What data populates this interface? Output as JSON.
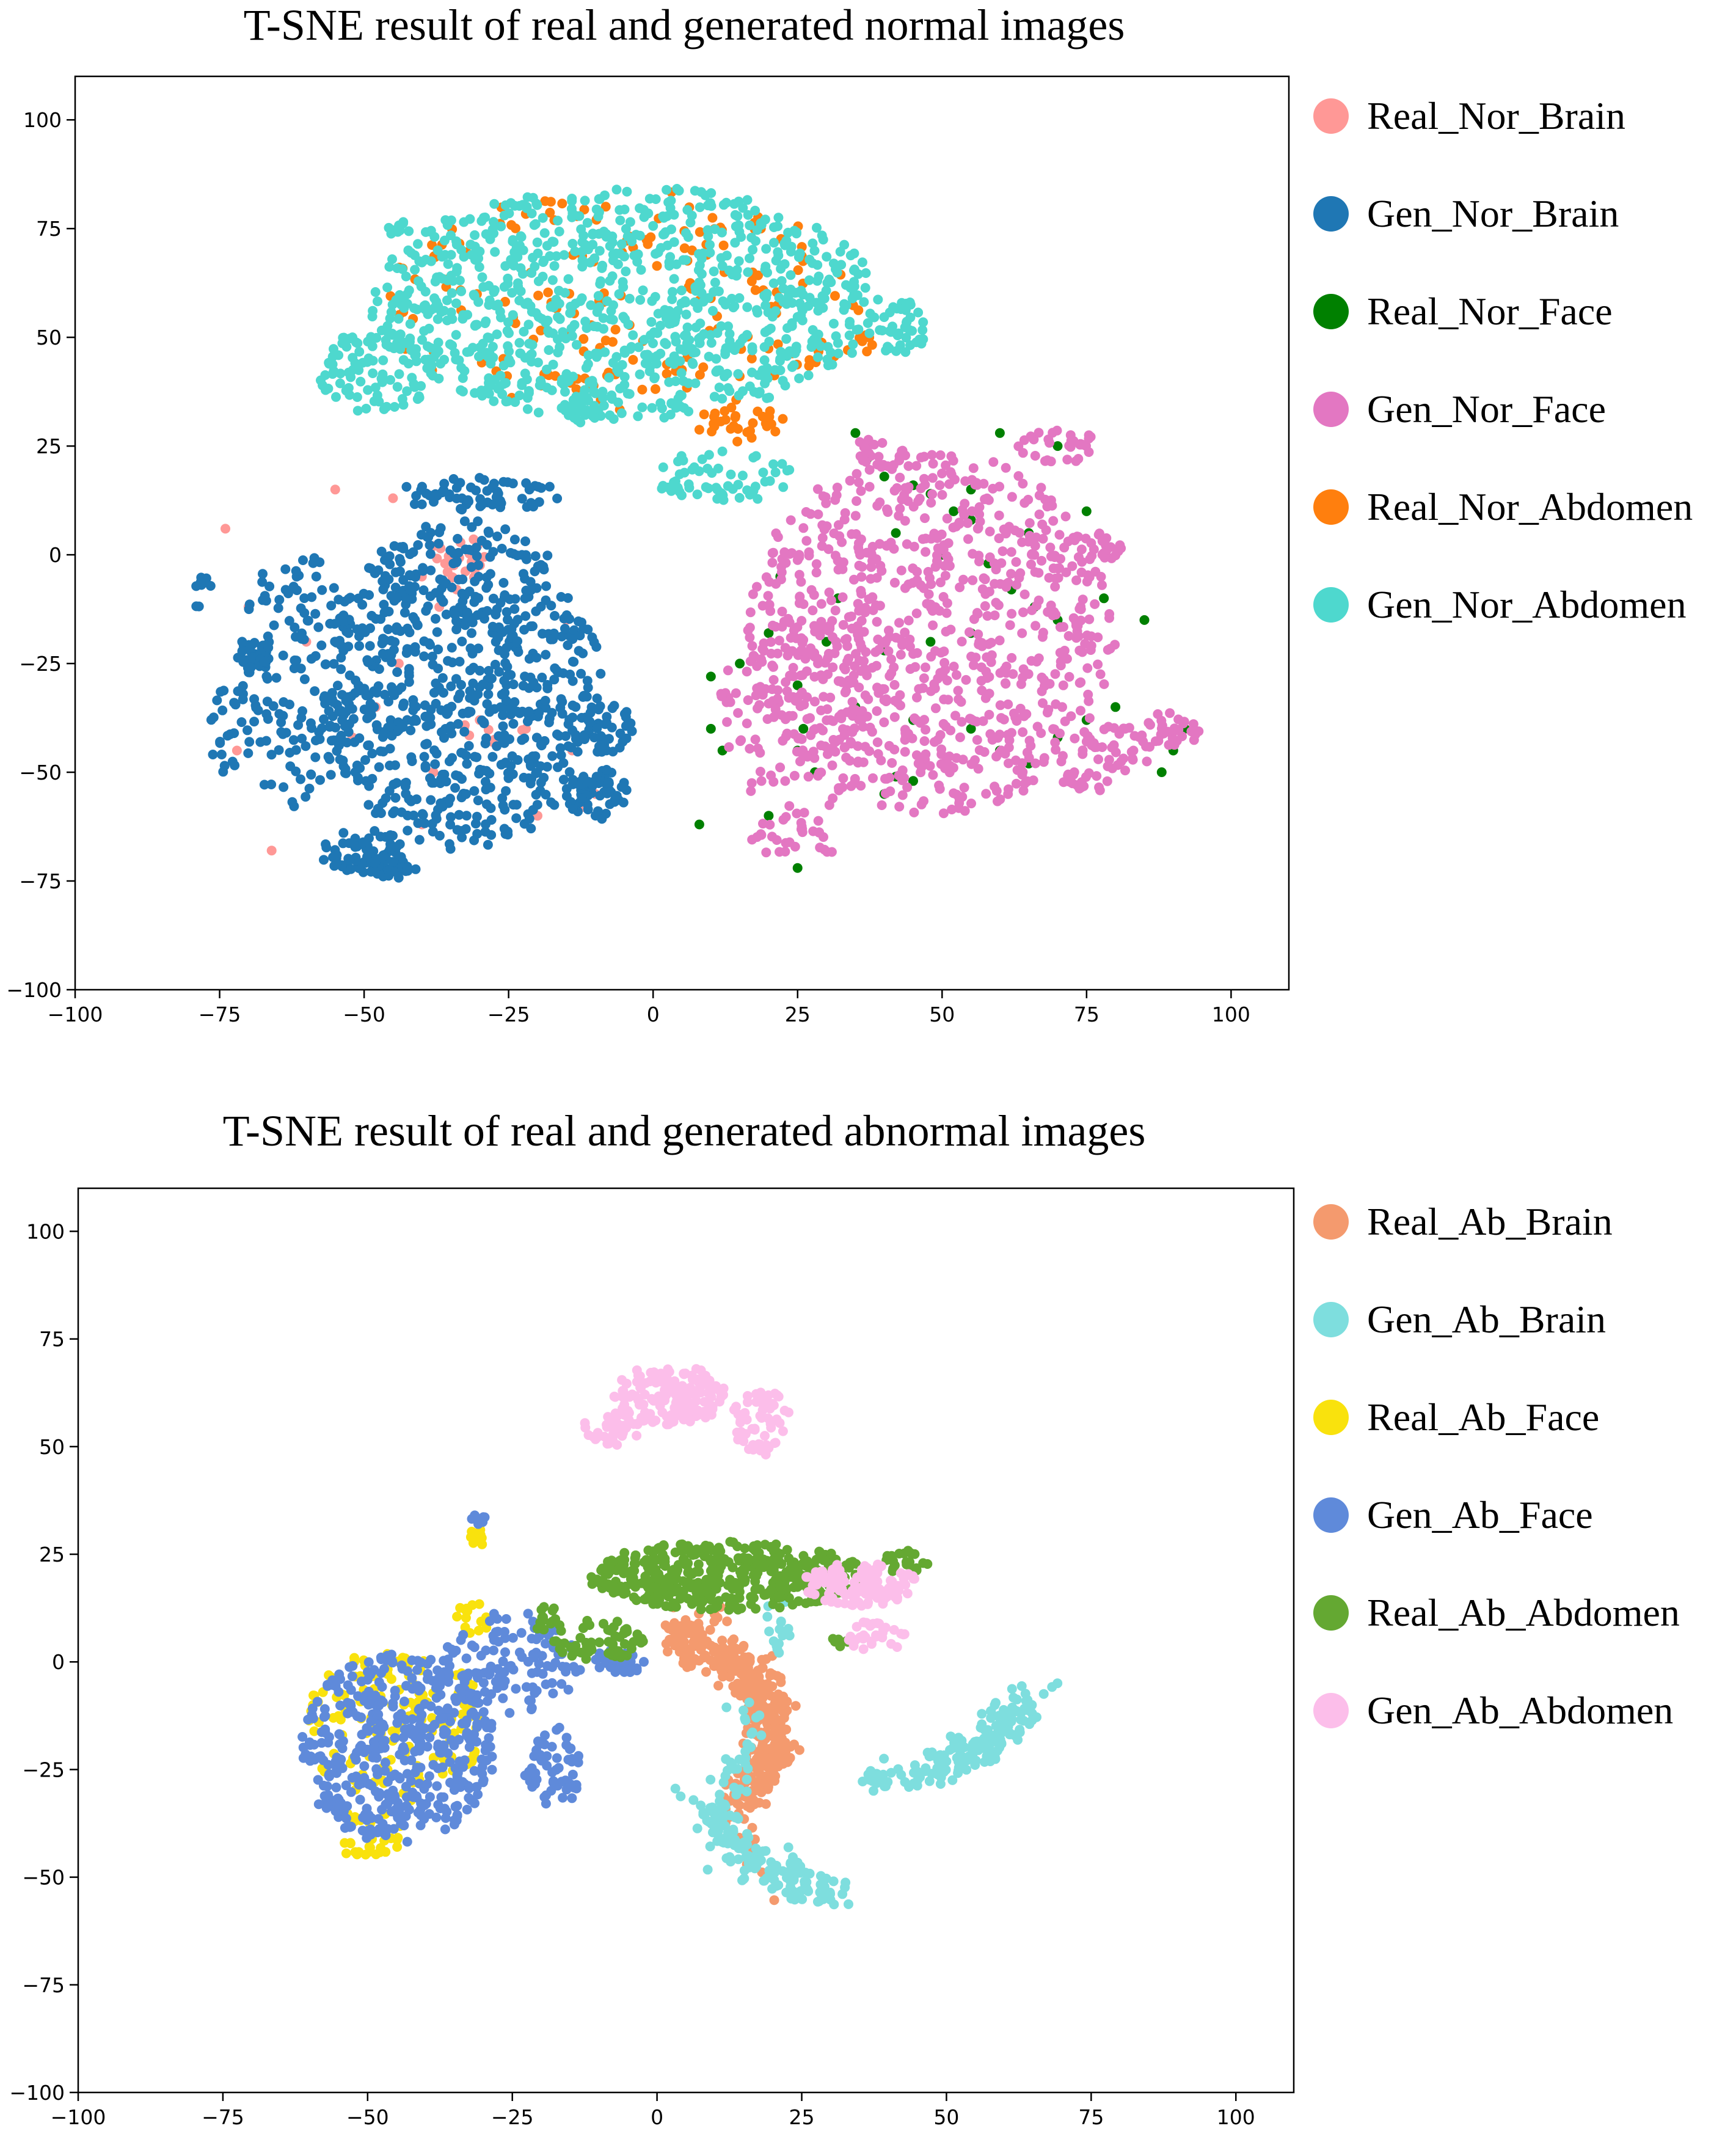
{
  "chart_data": [
    {
      "type": "scatter",
      "title": "T-SNE  result of real and generated normal images",
      "xlim": [
        -100,
        110
      ],
      "ylim": [
        -100,
        110
      ],
      "x_ticks": [
        -100,
        -75,
        -50,
        -25,
        0,
        25,
        50,
        75,
        100
      ],
      "y_ticks": [
        -100,
        -75,
        -50,
        -25,
        0,
        25,
        50,
        75,
        100
      ],
      "x_tick_labels": [
        "−100",
        "−75",
        "−50",
        "−25",
        "0",
        "25",
        "50",
        "75",
        "100"
      ],
      "y_tick_labels": [
        "−100",
        "−75",
        "−50",
        "−25",
        "0",
        "25",
        "50",
        "75",
        "100"
      ],
      "grid": false,
      "legend_position": "outside-right",
      "series": [
        {
          "name": "Real_Nor_Brain",
          "color": "#ff9896",
          "points": [
            [
              -38,
              2
            ],
            [
              -36,
              -2
            ],
            [
              -40,
              -5
            ],
            [
              -34,
              -8
            ],
            [
              -37,
              -12
            ],
            [
              -25,
              -35
            ],
            [
              -22,
              -40
            ],
            [
              -30,
              -38
            ],
            [
              -44,
              -25
            ],
            [
              -48,
              -35
            ],
            [
              -52,
              -42
            ],
            [
              -38,
              -50
            ],
            [
              -40,
              -62
            ],
            [
              -20,
              -60
            ],
            [
              -14,
              -45
            ],
            [
              -12,
              -58
            ],
            [
              -60,
              -20
            ],
            [
              -72,
              -45
            ],
            [
              -66,
              -68
            ],
            [
              -70,
              -12
            ],
            [
              -74,
              6
            ],
            [
              -55,
              15
            ],
            [
              -45,
              13
            ],
            [
              -15,
              -15
            ],
            [
              -10,
              -55
            ]
          ],
          "clusters": [
            {
              "cx": -33,
              "cy": 0,
              "rx": 5,
              "ry": 6,
              "n": 20
            },
            {
              "cx": -27,
              "cy": -40,
              "rx": 6,
              "ry": 4,
              "n": 10
            }
          ]
        },
        {
          "name": "Gen_Nor_Brain",
          "color": "#1f77b4",
          "clusters": [
            {
              "cx": -33,
              "cy": -30,
              "rx": 24,
              "ry": 38,
              "n": 750
            },
            {
              "cx": -62,
              "cy": -28,
              "rx": 10,
              "ry": 30,
              "n": 150
            },
            {
              "cx": -50,
              "cy": -68,
              "rx": 8,
              "ry": 5,
              "n": 60
            },
            {
              "cx": -45,
              "cy": -72,
              "rx": 4,
              "ry": 3,
              "n": 30
            },
            {
              "cx": -69,
              "cy": -23,
              "rx": 3,
              "ry": 3,
              "n": 30
            },
            {
              "cx": -10,
              "cy": -55,
              "rx": 6,
              "ry": 6,
              "n": 60
            },
            {
              "cx": -8,
              "cy": -40,
              "rx": 5,
              "ry": 6,
              "n": 40
            },
            {
              "cx": -30,
              "cy": 14,
              "rx": 14,
              "ry": 4,
              "n": 60
            },
            {
              "cx": -78,
              "cy": -10,
              "rx": 2,
              "ry": 6,
              "n": 10
            },
            {
              "cx": -74,
              "cy": -40,
              "rx": 3,
              "ry": 10,
              "n": 20
            }
          ]
        },
        {
          "name": "Real_Nor_Face",
          "color": "#008000",
          "points": [
            [
              35,
              28
            ],
            [
              37,
              22
            ],
            [
              40,
              18
            ],
            [
              45,
              16
            ],
            [
              48,
              14
            ],
            [
              52,
              10
            ],
            [
              55,
              8
            ],
            [
              42,
              5
            ],
            [
              50,
              0
            ],
            [
              58,
              -2
            ],
            [
              62,
              -8
            ],
            [
              66,
              -12
            ],
            [
              70,
              -15
            ],
            [
              55,
              -18
            ],
            [
              48,
              -20
            ],
            [
              40,
              -22
            ],
            [
              30,
              -20
            ],
            [
              20,
              -18
            ],
            [
              15,
              -25
            ],
            [
              10,
              -28
            ],
            [
              25,
              -30
            ],
            [
              35,
              -35
            ],
            [
              45,
              -38
            ],
            [
              55,
              -40
            ],
            [
              60,
              -45
            ],
            [
              65,
              -48
            ],
            [
              70,
              -42
            ],
            [
              75,
              -38
            ],
            [
              80,
              -35
            ],
            [
              85,
              -15
            ],
            [
              75,
              10
            ],
            [
              70,
              25
            ],
            [
              60,
              28
            ],
            [
              45,
              -52
            ],
            [
              42,
              -51
            ],
            [
              28,
              -50
            ],
            [
              25,
              -45
            ],
            [
              12,
              -45
            ],
            [
              10,
              -40
            ],
            [
              8,
              -62
            ],
            [
              25,
              -72
            ],
            [
              40,
              -55
            ],
            [
              20,
              -60
            ],
            [
              90,
              -45
            ],
            [
              92,
              -40
            ],
            [
              88,
              -50
            ],
            [
              78,
              -10
            ],
            [
              65,
              5
            ],
            [
              55,
              15
            ],
            [
              32,
              -10
            ],
            [
              22,
              -5
            ],
            [
              26,
              -40
            ]
          ]
        },
        {
          "name": "Gen_Nor_Face",
          "color": "#e377c2",
          "clusters": [
            {
              "cx": 48,
              "cy": -18,
              "rx": 32,
              "ry": 42,
              "n": 850
            },
            {
              "cx": 25,
              "cy": -35,
              "rx": 14,
              "ry": 25,
              "n": 120
            },
            {
              "cx": 80,
              "cy": -45,
              "rx": 6,
              "ry": 6,
              "n": 40
            },
            {
              "cx": 90,
              "cy": -40,
              "rx": 5,
              "ry": 4,
              "n": 30
            },
            {
              "cx": 75,
              "cy": -52,
              "rx": 4,
              "ry": 3,
              "n": 20
            },
            {
              "cx": 70,
              "cy": 25,
              "rx": 8,
              "ry": 4,
              "n": 30
            },
            {
              "cx": 78,
              "cy": 2,
              "rx": 5,
              "ry": 3,
              "n": 20
            },
            {
              "cx": 40,
              "cy": 24,
              "rx": 5,
              "ry": 4,
              "n": 20
            },
            {
              "cx": 25,
              "cy": -65,
              "rx": 8,
              "ry": 5,
              "n": 30
            }
          ]
        },
        {
          "name": "Real_Nor_Abdomen",
          "color": "#ff7f0e",
          "clusters": [
            {
              "cx": -5,
              "cy": 58,
              "rx": 42,
              "ry": 26,
              "n": 180
            },
            {
              "cx": 15,
              "cy": 30,
              "rx": 8,
              "ry": 4,
              "n": 30
            },
            {
              "cx": 36,
              "cy": 48,
              "rx": 3,
              "ry": 3,
              "n": 8
            }
          ]
        },
        {
          "name": "Gen_Nor_Abdomen",
          "color": "#4ed8ce",
          "clusters": [
            {
              "cx": -5,
              "cy": 58,
              "rx": 44,
              "ry": 27,
              "n": 900
            },
            {
              "cx": -48,
              "cy": 42,
              "rx": 10,
              "ry": 10,
              "n": 100
            },
            {
              "cx": 43,
              "cy": 52,
              "rx": 4,
              "ry": 7,
              "n": 40
            },
            {
              "cx": 12,
              "cy": 18,
              "rx": 12,
              "ry": 6,
              "n": 60
            },
            {
              "cx": -44,
              "cy": 75,
              "rx": 2,
              "ry": 2,
              "n": 10
            },
            {
              "cx": -12,
              "cy": 33,
              "rx": 4,
              "ry": 3,
              "n": 20
            }
          ]
        }
      ]
    },
    {
      "type": "scatter",
      "title": "T-SNE  result of real and generated abnormal images",
      "xlim": [
        -100,
        110
      ],
      "ylim": [
        -100,
        110
      ],
      "x_ticks": [
        -100,
        -75,
        -50,
        -25,
        0,
        25,
        50,
        75,
        100
      ],
      "y_ticks": [
        -100,
        -75,
        -50,
        -25,
        0,
        25,
        50,
        75,
        100
      ],
      "x_tick_labels": [
        "−100",
        "−75",
        "−50",
        "−25",
        "0",
        "25",
        "50",
        "75",
        "100"
      ],
      "y_tick_labels": [
        "−100",
        "−75",
        "−50",
        "−25",
        "0",
        "25",
        "50",
        "75",
        "100"
      ],
      "grid": false,
      "legend_position": "outside-right",
      "series": [
        {
          "name": "Real_Ab_Brain",
          "color": "#f49a6e",
          "curves": [
            {
              "pts": [
                [
                  3,
                  7
                ],
                [
                  8,
                  3
                ],
                [
                  13,
                  0
                ],
                [
                  17,
                  -3
                ],
                [
                  18,
                  -8
                ],
                [
                  19,
                  -13
                ],
                [
                  20,
                  -18
                ],
                [
                  19,
                  -23
                ],
                [
                  17,
                  -28
                ],
                [
                  15,
                  -32
                ]
              ],
              "spread": 2.2,
              "n": 400
            },
            {
              "pts": [
                [
                  8,
                  10
                ],
                [
                  6,
                  8
                ],
                [
                  3,
                  5
                ]
              ],
              "spread": 2,
              "n": 30
            },
            {
              "pts": [
                [
                  13,
                  -35
                ],
                [
                  16,
                  -45
                ],
                [
                  20,
                  -55
                ]
              ],
              "spread": 1.5,
              "n": 15
            }
          ]
        },
        {
          "name": "Gen_Ab_Brain",
          "color": "#7edede",
          "curves": [
            {
              "pts": [
                [
                  10,
                  -32
                ],
                [
                  12,
                  -40
                ],
                [
                  15,
                  -45
                ],
                [
                  20,
                  -48
                ],
                [
                  25,
                  -52
                ],
                [
                  32,
                  -55
                ]
              ],
              "spread": 2.2,
              "n": 160
            },
            {
              "pts": [
                [
                  48,
                  -25
                ],
                [
                  55,
                  -20
                ],
                [
                  60,
                  -15
                ],
                [
                  65,
                  -8
                ]
              ],
              "spread": 2.2,
              "n": 140
            },
            {
              "pts": [
                [
                  36,
                  -27
                ],
                [
                  42,
                  -26
                ],
                [
                  46,
                  -25
                ]
              ],
              "spread": 1.5,
              "n": 30
            },
            {
              "pts": [
                [
                  14,
                  -10
                ],
                [
                  16,
                  -20
                ],
                [
                  12,
                  -28
                ]
              ],
              "spread": 2,
              "n": 30
            },
            {
              "pts": [
                [
                  20,
                  13
                ],
                [
                  21,
                  6
                ],
                [
                  22,
                  2
                ]
              ],
              "spread": 1.5,
              "n": 15
            }
          ]
        },
        {
          "name": "Real_Ab_Face",
          "color": "#f9e20d",
          "clusters": [
            {
              "cx": -45,
              "cy": -15,
              "rx": 16,
              "ry": 18,
              "n": 150
            },
            {
              "cx": -50,
              "cy": -40,
              "rx": 6,
              "ry": 6,
              "n": 30
            },
            {
              "cx": -31,
              "cy": 29,
              "rx": 1.5,
              "ry": 2,
              "n": 8
            },
            {
              "cx": -32,
              "cy": 10,
              "rx": 3,
              "ry": 4,
              "n": 15
            }
          ]
        },
        {
          "name": "Gen_Ab_Face",
          "color": "#5f8ada",
          "clusters": [
            {
              "cx": -45,
              "cy": -20,
              "rx": 17,
              "ry": 22,
              "n": 450
            },
            {
              "cx": -25,
              "cy": 0,
              "rx": 12,
              "ry": 12,
              "n": 120
            },
            {
              "cx": -18,
              "cy": -25,
              "rx": 5,
              "ry": 10,
              "n": 60
            },
            {
              "cx": -31,
              "cy": 33,
              "rx": 1.5,
              "ry": 1.5,
              "n": 8
            },
            {
              "cx": -7,
              "cy": 0,
              "rx": 5,
              "ry": 3,
              "n": 30
            }
          ]
        },
        {
          "name": "Real_Ab_Abdomen",
          "color": "#64a832",
          "clusters": [
            {
              "cx": 12,
              "cy": 20,
              "rx": 24,
              "ry": 8,
              "n": 450
            },
            {
              "cx": -10,
              "cy": 5,
              "rx": 8,
              "ry": 5,
              "n": 60
            },
            {
              "cx": 43,
              "cy": 23,
              "rx": 4,
              "ry": 3,
              "n": 20
            },
            {
              "cx": -19,
              "cy": 10,
              "rx": 3,
              "ry": 3,
              "n": 15
            },
            {
              "cx": 32,
              "cy": 5,
              "rx": 2,
              "ry": 2,
              "n": 8
            }
          ]
        },
        {
          "name": "Gen_Ab_Abdomen",
          "color": "#fcbeea",
          "clusters": [
            {
              "cx": 2,
              "cy": 62,
              "rx": 10,
              "ry": 7,
              "n": 150
            },
            {
              "cx": -8,
              "cy": 54,
              "rx": 5,
              "ry": 4,
              "n": 40
            },
            {
              "cx": 18,
              "cy": 56,
              "rx": 5,
              "ry": 8,
              "n": 60
            },
            {
              "cx": 35,
              "cy": 18,
              "rx": 10,
              "ry": 5,
              "n": 120
            },
            {
              "cx": 38,
              "cy": 6,
              "rx": 5,
              "ry": 4,
              "n": 30
            }
          ]
        }
      ]
    }
  ]
}
